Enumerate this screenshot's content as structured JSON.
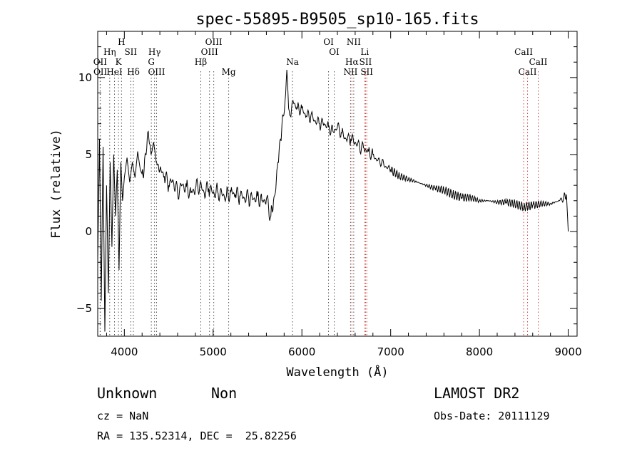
{
  "chart_data": {
    "type": "line",
    "title": "spec-55895-B9505_sp10-165.fits",
    "xlabel": "Wavelength (Å)",
    "ylabel": "Flux (relative)",
    "xlim": [
      3700,
      9100
    ],
    "ylim": [
      -6.8,
      13.0
    ],
    "xticks": [
      4000,
      5000,
      6000,
      7000,
      8000,
      9000
    ],
    "yticks": [
      -5,
      0,
      5,
      10
    ],
    "grid": false,
    "legend": "none",
    "series": [
      {
        "x": [
          3700,
          3720,
          3740,
          3760,
          3780,
          3800,
          3820,
          3840,
          3860,
          3880,
          3900,
          3920,
          3940,
          3960,
          3980,
          4000,
          4030,
          4060,
          4090,
          4120,
          4150,
          4180,
          4210,
          4240,
          4270,
          4300,
          4330,
          4360,
          4400,
          4450,
          4500,
          4550,
          4600,
          4650,
          4700,
          4750,
          4800,
          4850,
          4900,
          4950,
          5000,
          5050,
          5100,
          5150,
          5200,
          5250,
          5300,
          5350,
          5400,
          5450,
          5500,
          5550,
          5600,
          5650,
          5680,
          5700,
          5730,
          5760,
          5790,
          5810,
          5830,
          5850,
          5870,
          5900,
          5950,
          6000,
          6050,
          6100,
          6150,
          6200,
          6250,
          6300,
          6350,
          6400,
          6450,
          6500,
          6550,
          6600,
          6650,
          6700,
          6750,
          6800,
          6850,
          6900,
          6950,
          7000,
          7100,
          7200,
          7300,
          7400,
          7500,
          7600,
          7700,
          7800,
          7900,
          8000,
          8100,
          8200,
          8300,
          8400,
          8500,
          8600,
          8700,
          8800,
          8900,
          8950,
          8980,
          9000
        ],
        "y": [
          -2.0,
          6.0,
          -4.5,
          5.5,
          -6.5,
          3.0,
          -4.0,
          4.5,
          -1.0,
          5.0,
          1.0,
          4.0,
          -2.5,
          4.5,
          2.0,
          3.5,
          4.8,
          3.2,
          4.5,
          3.5,
          5.2,
          4.0,
          3.6,
          5.0,
          6.5,
          5.0,
          5.8,
          4.5,
          4.0,
          3.6,
          3.0,
          3.3,
          2.5,
          3.0,
          2.9,
          2.5,
          2.8,
          3.0,
          2.5,
          2.8,
          2.5,
          2.6,
          2.4,
          2.3,
          2.6,
          2.4,
          2.3,
          2.2,
          2.2,
          2.1,
          2.3,
          2.0,
          2.1,
          1.0,
          2.0,
          2.5,
          4.5,
          6.0,
          7.5,
          8.5,
          10.5,
          8.0,
          7.5,
          8.5,
          8.0,
          8.0,
          7.5,
          7.5,
          7.2,
          7.0,
          7.0,
          6.8,
          6.5,
          6.8,
          6.4,
          6.0,
          6.0,
          5.8,
          5.5,
          5.4,
          5.2,
          5.0,
          4.6,
          4.5,
          4.2,
          4.0,
          3.6,
          3.4,
          3.2,
          3.0,
          2.8,
          2.7,
          2.4,
          2.2,
          2.2,
          2.0,
          2.0,
          1.9,
          1.9,
          1.8,
          1.6,
          1.7,
          1.8,
          1.8,
          2.0,
          2.2,
          2.4,
          0.0
        ]
      }
    ],
    "line_markers": [
      {
        "name": "OII",
        "wave": 3727,
        "color": "#555555",
        "row": 2
      },
      {
        "name": "OII",
        "wave": 3729,
        "color": "#555555",
        "row": 3
      },
      {
        "name": "Hη",
        "wave": 3835,
        "color": "#555555",
        "row": 1
      },
      {
        "name": "HeI",
        "wave": 3889,
        "color": "#555555",
        "row": 3
      },
      {
        "name": "K",
        "wave": 3934,
        "color": "#555555",
        "row": 2
      },
      {
        "name": "H",
        "wave": 3968,
        "color": "#555555",
        "row": 0
      },
      {
        "name": "SII",
        "wave": 4072,
        "color": "#555555",
        "row": 1
      },
      {
        "name": "Hδ",
        "wave": 4102,
        "color": "#555555",
        "row": 3
      },
      {
        "name": "Hγ",
        "wave": 4340,
        "color": "#555555",
        "row": 1
      },
      {
        "name": "G",
        "wave": 4304,
        "color": "#555555",
        "row": 2
      },
      {
        "name": "OIII",
        "wave": 4363,
        "color": "#555555",
        "row": 3
      },
      {
        "name": "Hβ",
        "wave": 4861,
        "color": "#555555",
        "row": 2
      },
      {
        "name": "OIII",
        "wave": 4959,
        "color": "#555555",
        "row": 1
      },
      {
        "name": "OIII",
        "wave": 5007,
        "color": "#555555",
        "row": 0
      },
      {
        "name": "Mg",
        "wave": 5175,
        "color": "#555555",
        "row": 3
      },
      {
        "name": "Na",
        "wave": 5894,
        "color": "#555555",
        "row": 2
      },
      {
        "name": "OI",
        "wave": 6300,
        "color": "#555555",
        "row": 0
      },
      {
        "name": "OI",
        "wave": 6364,
        "color": "#555555",
        "row": 1
      },
      {
        "name": "NII",
        "wave": 6548,
        "color": "#555555",
        "row": 3
      },
      {
        "name": "Hα",
        "wave": 6563,
        "color": "#d04040",
        "row": 2
      },
      {
        "name": "NII",
        "wave": 6584,
        "color": "#555555",
        "row": 0
      },
      {
        "name": "Li",
        "wave": 6708,
        "color": "#d04040",
        "row": 1
      },
      {
        "name": "SII",
        "wave": 6717,
        "color": "#d04040",
        "row": 2
      },
      {
        "name": "SII",
        "wave": 6731,
        "color": "#d04040",
        "row": 3
      },
      {
        "name": "CaII",
        "wave": 8498,
        "color": "#d04040",
        "row": 1
      },
      {
        "name": "CaII",
        "wave": 8542,
        "color": "#d04040",
        "row": 3
      },
      {
        "name": "CaII",
        "wave": 8662,
        "color": "#d04040",
        "row": 2
      }
    ]
  },
  "info": {
    "class": "Unknown",
    "subclass": "Non",
    "cz": "cz = NaN",
    "radec": "RA = 135.52314, DEC =  25.82256",
    "survey": "LAMOST DR2",
    "obsdate": "Obs-Date: 20111129"
  }
}
